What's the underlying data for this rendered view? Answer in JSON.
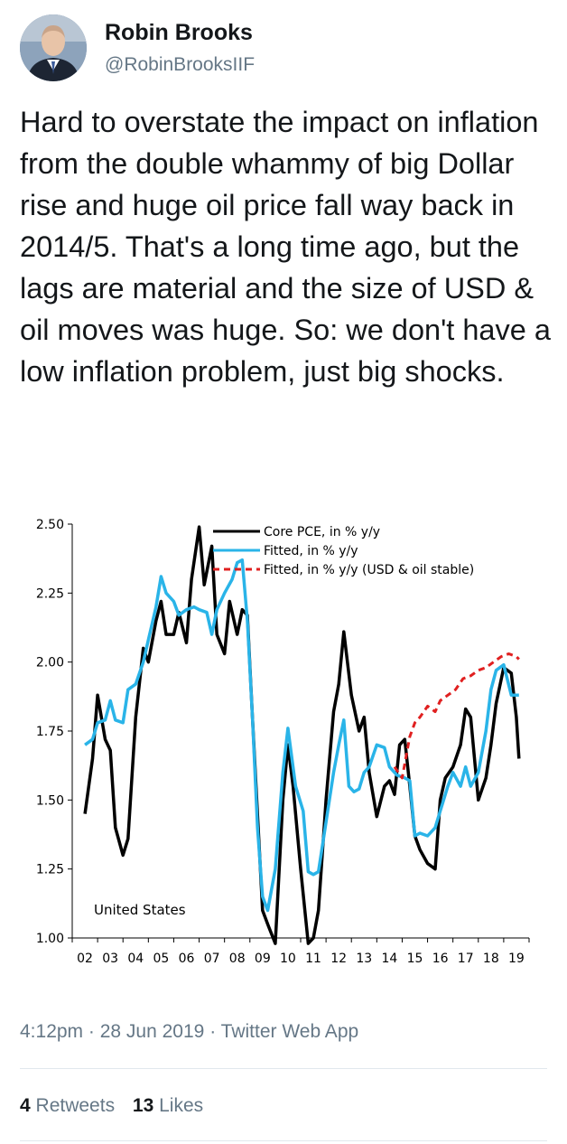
{
  "author": {
    "name": "Robin Brooks",
    "handle": "@RobinBrooksIIF"
  },
  "tweet": {
    "text": "Hard to overstate the impact on inflation from the double whammy of big Dollar rise and huge oil price fall way back in 2014/5. That's a long time ago, but the lags are material and the size of USD & oil moves was huge. So: we don't have a low inflation problem, just big shocks."
  },
  "meta": {
    "time": "4:12pm",
    "date": "28 Jun 2019",
    "source": "Twitter Web App",
    "separator": "·"
  },
  "stats": {
    "retweets_count": "4",
    "retweets_label": "Retweets",
    "likes_count": "13",
    "likes_label": "Likes"
  },
  "chart_data": {
    "type": "line",
    "annotation": "United States",
    "ylim": [
      1.0,
      2.5
    ],
    "yticks": [
      "1.00",
      "1.25",
      "1.50",
      "1.75",
      "2.00",
      "2.25",
      "2.50"
    ],
    "xlim": [
      2001.5,
      2019.5
    ],
    "xtick_labels": [
      "02",
      "03",
      "04",
      "05",
      "06",
      "07",
      "08",
      "09",
      "10",
      "11",
      "12",
      "13",
      "14",
      "15",
      "16",
      "17",
      "18",
      "19"
    ],
    "grid": false,
    "legend_position": "top-right",
    "series": [
      {
        "name": "Core PCE, in % y/y",
        "color": "#000000",
        "style": "solid",
        "points": [
          [
            2002.0,
            1.45
          ],
          [
            2002.3,
            1.65
          ],
          [
            2002.5,
            1.88
          ],
          [
            2002.8,
            1.72
          ],
          [
            2003.0,
            1.68
          ],
          [
            2003.2,
            1.4
          ],
          [
            2003.5,
            1.3
          ],
          [
            2003.7,
            1.36
          ],
          [
            2004.0,
            1.8
          ],
          [
            2004.3,
            2.05
          ],
          [
            2004.5,
            2.0
          ],
          [
            2004.8,
            2.15
          ],
          [
            2005.0,
            2.22
          ],
          [
            2005.2,
            2.1
          ],
          [
            2005.5,
            2.1
          ],
          [
            2005.7,
            2.18
          ],
          [
            2006.0,
            2.07
          ],
          [
            2006.2,
            2.3
          ],
          [
            2006.5,
            2.49
          ],
          [
            2006.7,
            2.28
          ],
          [
            2007.0,
            2.42
          ],
          [
            2007.2,
            2.1
          ],
          [
            2007.5,
            2.03
          ],
          [
            2007.7,
            2.22
          ],
          [
            2008.0,
            2.1
          ],
          [
            2008.2,
            2.19
          ],
          [
            2008.4,
            2.17
          ],
          [
            2008.6,
            1.8
          ],
          [
            2008.8,
            1.45
          ],
          [
            2009.0,
            1.1
          ],
          [
            2009.2,
            1.05
          ],
          [
            2009.5,
            0.98
          ],
          [
            2009.8,
            1.5
          ],
          [
            2010.0,
            1.7
          ],
          [
            2010.2,
            1.55
          ],
          [
            2010.5,
            1.25
          ],
          [
            2010.8,
            0.98
          ],
          [
            2011.0,
            1.0
          ],
          [
            2011.2,
            1.1
          ],
          [
            2011.5,
            1.5
          ],
          [
            2011.8,
            1.82
          ],
          [
            2012.0,
            1.92
          ],
          [
            2012.2,
            2.11
          ],
          [
            2012.5,
            1.88
          ],
          [
            2012.8,
            1.75
          ],
          [
            2013.0,
            1.8
          ],
          [
            2013.2,
            1.6
          ],
          [
            2013.5,
            1.44
          ],
          [
            2013.8,
            1.55
          ],
          [
            2014.0,
            1.57
          ],
          [
            2014.2,
            1.52
          ],
          [
            2014.4,
            1.7
          ],
          [
            2014.6,
            1.72
          ],
          [
            2014.8,
            1.55
          ],
          [
            2015.0,
            1.37
          ],
          [
            2015.2,
            1.32
          ],
          [
            2015.5,
            1.27
          ],
          [
            2015.8,
            1.25
          ],
          [
            2016.0,
            1.5
          ],
          [
            2016.2,
            1.58
          ],
          [
            2016.5,
            1.62
          ],
          [
            2016.8,
            1.7
          ],
          [
            2017.0,
            1.83
          ],
          [
            2017.2,
            1.8
          ],
          [
            2017.5,
            1.5
          ],
          [
            2017.8,
            1.58
          ],
          [
            2018.0,
            1.7
          ],
          [
            2018.2,
            1.85
          ],
          [
            2018.5,
            1.98
          ],
          [
            2018.8,
            1.96
          ],
          [
            2019.0,
            1.8
          ],
          [
            2019.1,
            1.65
          ]
        ]
      },
      {
        "name": "Fitted, in % y/y",
        "color": "#2ab4e8",
        "style": "solid",
        "points": [
          [
            2002.0,
            1.7
          ],
          [
            2002.3,
            1.72
          ],
          [
            2002.5,
            1.78
          ],
          [
            2002.8,
            1.79
          ],
          [
            2003.0,
            1.86
          ],
          [
            2003.2,
            1.79
          ],
          [
            2003.5,
            1.78
          ],
          [
            2003.7,
            1.9
          ],
          [
            2004.0,
            1.92
          ],
          [
            2004.3,
            2.0
          ],
          [
            2004.5,
            2.08
          ],
          [
            2004.8,
            2.2
          ],
          [
            2005.0,
            2.31
          ],
          [
            2005.2,
            2.25
          ],
          [
            2005.5,
            2.22
          ],
          [
            2005.7,
            2.17
          ],
          [
            2006.0,
            2.19
          ],
          [
            2006.3,
            2.2
          ],
          [
            2006.5,
            2.19
          ],
          [
            2006.8,
            2.18
          ],
          [
            2007.0,
            2.1
          ],
          [
            2007.2,
            2.19
          ],
          [
            2007.5,
            2.25
          ],
          [
            2007.8,
            2.3
          ],
          [
            2008.0,
            2.36
          ],
          [
            2008.2,
            2.37
          ],
          [
            2008.4,
            2.15
          ],
          [
            2008.6,
            1.8
          ],
          [
            2008.8,
            1.4
          ],
          [
            2009.0,
            1.15
          ],
          [
            2009.2,
            1.1
          ],
          [
            2009.5,
            1.25
          ],
          [
            2009.8,
            1.6
          ],
          [
            2010.0,
            1.76
          ],
          [
            2010.3,
            1.55
          ],
          [
            2010.6,
            1.46
          ],
          [
            2010.8,
            1.24
          ],
          [
            2011.0,
            1.23
          ],
          [
            2011.2,
            1.24
          ],
          [
            2011.5,
            1.42
          ],
          [
            2011.8,
            1.6
          ],
          [
            2012.0,
            1.7
          ],
          [
            2012.2,
            1.79
          ],
          [
            2012.4,
            1.55
          ],
          [
            2012.6,
            1.53
          ],
          [
            2012.8,
            1.54
          ],
          [
            2013.0,
            1.6
          ],
          [
            2013.2,
            1.62
          ],
          [
            2013.5,
            1.7
          ],
          [
            2013.8,
            1.69
          ],
          [
            2014.0,
            1.62
          ],
          [
            2014.3,
            1.59
          ],
          [
            2014.6,
            1.58
          ],
          [
            2014.8,
            1.57
          ],
          [
            2015.0,
            1.37
          ],
          [
            2015.2,
            1.38
          ],
          [
            2015.5,
            1.37
          ],
          [
            2015.8,
            1.4
          ],
          [
            2016.0,
            1.46
          ],
          [
            2016.3,
            1.55
          ],
          [
            2016.5,
            1.6
          ],
          [
            2016.8,
            1.55
          ],
          [
            2017.0,
            1.62
          ],
          [
            2017.2,
            1.55
          ],
          [
            2017.5,
            1.6
          ],
          [
            2017.8,
            1.75
          ],
          [
            2018.0,
            1.9
          ],
          [
            2018.2,
            1.97
          ],
          [
            2018.5,
            1.99
          ],
          [
            2018.8,
            1.88
          ],
          [
            2019.0,
            1.88
          ],
          [
            2019.1,
            1.88
          ]
        ]
      },
      {
        "name": "Fitted, in % y/y (USD & oil stable)",
        "color": "#e02020",
        "style": "dashed",
        "points": [
          [
            2014.2,
            1.62
          ],
          [
            2014.5,
            1.58
          ],
          [
            2014.8,
            1.73
          ],
          [
            2015.0,
            1.78
          ],
          [
            2015.2,
            1.8
          ],
          [
            2015.5,
            1.84
          ],
          [
            2015.8,
            1.82
          ],
          [
            2016.0,
            1.86
          ],
          [
            2016.3,
            1.88
          ],
          [
            2016.6,
            1.9
          ],
          [
            2016.9,
            1.94
          ],
          [
            2017.2,
            1.95
          ],
          [
            2017.5,
            1.97
          ],
          [
            2017.8,
            1.98
          ],
          [
            2018.1,
            2.0
          ],
          [
            2018.4,
            2.02
          ],
          [
            2018.7,
            2.03
          ],
          [
            2019.0,
            2.02
          ],
          [
            2019.1,
            2.01
          ]
        ]
      }
    ]
  }
}
